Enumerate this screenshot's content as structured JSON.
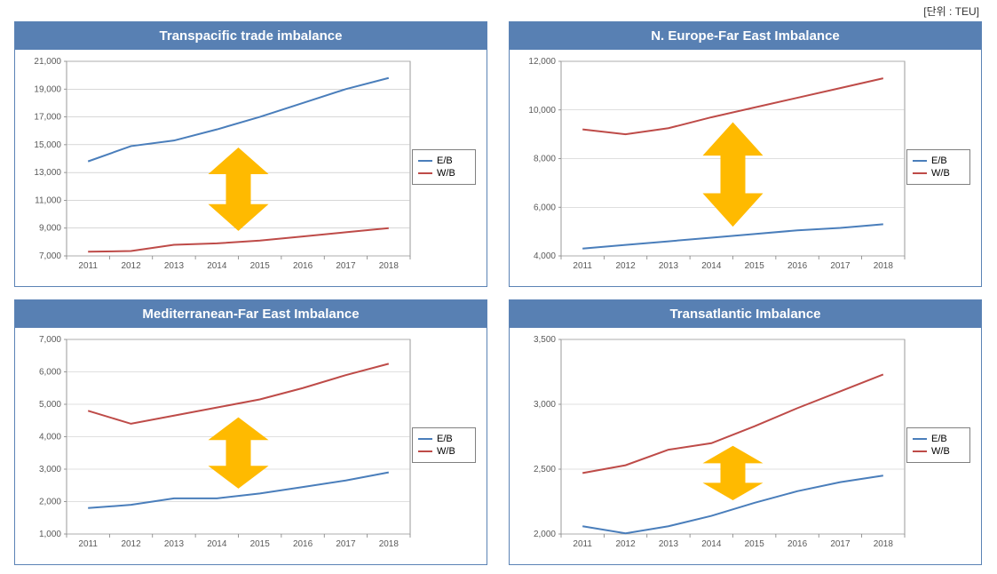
{
  "unit_label": "[단위 : TEU]",
  "colors": {
    "panel_border": "#5b83b5",
    "title_bg": "#5880B3",
    "title_text": "#ffffff",
    "plot_bg": "#ffffff",
    "grid_line": "#bfbfbf",
    "axis_line": "#808080",
    "tick_text": "#595959",
    "series_eb": "#4a7ebb",
    "series_wb": "#be4b48",
    "arrow_fill": "#ffba00",
    "legend_border": "#808080"
  },
  "fonts": {
    "title_size": 15,
    "axis_size": 10,
    "legend_size": 11
  },
  "legend_labels": {
    "eb": "E/B",
    "wb": "W/B"
  },
  "x_categories": [
    "2011",
    "2012",
    "2013",
    "2014",
    "2015",
    "2016",
    "2017",
    "2018"
  ],
  "panels": [
    {
      "key": "transpacific",
      "title": "Transpacific trade imbalance",
      "y_min": 7000,
      "y_max": 21000,
      "y_step": 2000,
      "series_eb": [
        13800,
        14900,
        15300,
        16100,
        17000,
        18000,
        19000,
        19800
      ],
      "series_wb": [
        7300,
        7350,
        7800,
        7900,
        8100,
        8400,
        8700,
        9000
      ],
      "arrow_center_x_idx": 3.5,
      "arrow_top_val": 14800,
      "arrow_bottom_val": 8800
    },
    {
      "key": "neurope",
      "title": "N. Europe-Far East Imbalance",
      "y_min": 4000,
      "y_max": 12000,
      "y_step": 2000,
      "series_eb": [
        4300,
        4450,
        4600,
        4750,
        4900,
        5050,
        5150,
        5300
      ],
      "series_wb": [
        9200,
        9000,
        9250,
        9700,
        10100,
        10500,
        10900,
        11300
      ],
      "arrow_center_x_idx": 3.5,
      "arrow_top_val": 9500,
      "arrow_bottom_val": 5200
    },
    {
      "key": "med",
      "title": "Mediterranean-Far East Imbalance",
      "y_min": 1000,
      "y_max": 7000,
      "y_step": 1000,
      "series_eb": [
        1800,
        1900,
        2100,
        2100,
        2250,
        2450,
        2650,
        2900
      ],
      "series_wb": [
        4800,
        4400,
        4650,
        4900,
        5150,
        5500,
        5900,
        6250
      ],
      "arrow_center_x_idx": 3.5,
      "arrow_top_val": 4600,
      "arrow_bottom_val": 2400
    },
    {
      "key": "transatlantic",
      "title": "Transatlantic Imbalance",
      "y_min": 2000,
      "y_max": 3500,
      "y_step": 500,
      "series_eb": [
        2060,
        2005,
        2060,
        2140,
        2240,
        2330,
        2400,
        2450
      ],
      "series_wb": [
        2470,
        2530,
        2650,
        2700,
        2830,
        2970,
        3100,
        3230
      ],
      "arrow_center_x_idx": 3.5,
      "arrow_top_val": 2680,
      "arrow_bottom_val": 2260
    }
  ]
}
